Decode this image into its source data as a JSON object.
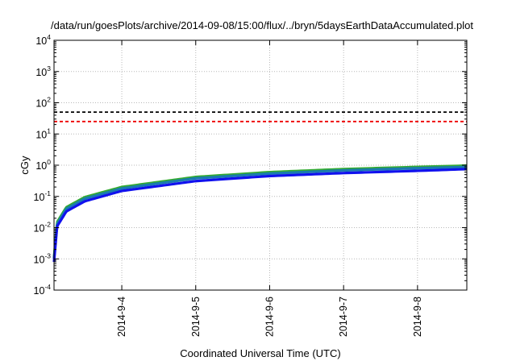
{
  "chart_data": {
    "type": "line",
    "title": "/data/run/goesPlots/archive/2014-09-08/15:00/flux/../bryn/5daysEarthDataAccumulated.plot",
    "xlabel": "Coordinated Universal Time (UTC)",
    "ylabel": "cGy",
    "yscale": "log",
    "ylim": [
      0.0001,
      10000
    ],
    "xlim": [
      "2014-09-03 02:00",
      "2014-09-08 16:00"
    ],
    "x_ticks": [
      "2014-9-4",
      "2014-9-5",
      "2014-9-6",
      "2014-9-7",
      "2014-9-8"
    ],
    "y_ticks": [
      {
        "base": "10",
        "exp": "-4"
      },
      {
        "base": "10",
        "exp": "-3"
      },
      {
        "base": "10",
        "exp": "-2"
      },
      {
        "base": "10",
        "exp": "-1"
      },
      {
        "base": "10",
        "exp": "0"
      },
      {
        "base": "10",
        "exp": "1"
      },
      {
        "base": "10",
        "exp": "2"
      },
      {
        "base": "10",
        "exp": "3"
      },
      {
        "base": "10",
        "exp": "4"
      }
    ],
    "grid": true,
    "series": [
      {
        "color": "#33aa33",
        "style": "solid",
        "x": [
          "2014-09-03 02:00",
          "2014-09-03 03:00",
          "2014-09-03 06:00",
          "2014-09-03 12:00",
          "2014-09-04 00:00",
          "2014-09-05 00:00",
          "2014-09-06 00:00",
          "2014-09-07 00:00",
          "2014-09-08 00:00",
          "2014-09-08 16:00"
        ],
        "y": [
          0.0011,
          0.015,
          0.045,
          0.095,
          0.2,
          0.42,
          0.6,
          0.75,
          0.88,
          0.97
        ]
      },
      {
        "color": "#1a7ab0",
        "style": "solid",
        "x": [
          "2014-09-03 02:00",
          "2014-09-03 03:00",
          "2014-09-03 06:00",
          "2014-09-03 12:00",
          "2014-09-04 00:00",
          "2014-09-05 00:00",
          "2014-09-06 00:00",
          "2014-09-07 00:00",
          "2014-09-08 00:00",
          "2014-09-08 16:00"
        ],
        "y": [
          0.001,
          0.013,
          0.04,
          0.085,
          0.18,
          0.38,
          0.54,
          0.68,
          0.8,
          0.88
        ]
      },
      {
        "color": "#1111ee",
        "style": "solid",
        "x": [
          "2014-09-03 02:00",
          "2014-09-03 03:00",
          "2014-09-03 06:00",
          "2014-09-03 12:00",
          "2014-09-04 00:00",
          "2014-09-05 00:00",
          "2014-09-06 00:00",
          "2014-09-07 00:00",
          "2014-09-08 00:00",
          "2014-09-08 16:00"
        ],
        "y": [
          0.0008,
          0.011,
          0.033,
          0.07,
          0.15,
          0.31,
          0.45,
          0.56,
          0.66,
          0.75
        ]
      },
      {
        "color": "#000000",
        "style": "dashed",
        "x": [
          "2014-09-03 02:00",
          "2014-09-08 16:00"
        ],
        "y": [
          50,
          50
        ]
      },
      {
        "color": "#ee0000",
        "style": "dashed",
        "x": [
          "2014-09-03 02:00",
          "2014-09-08 16:00"
        ],
        "y": [
          25,
          25
        ]
      }
    ]
  }
}
